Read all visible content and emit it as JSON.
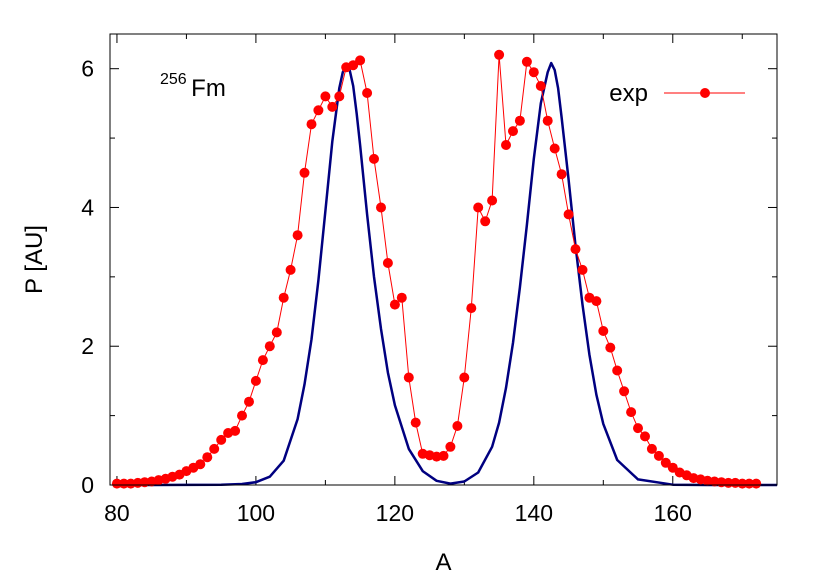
{
  "chart_data": {
    "type": "line",
    "title": "",
    "xlabel": "A",
    "ylabel": "P [AU]",
    "xlim": [
      79,
      175
    ],
    "ylim": [
      0,
      6.5
    ],
    "x_ticks": [
      80,
      100,
      120,
      140,
      160
    ],
    "y_ticks": [
      0,
      2,
      4,
      6
    ],
    "annotation": {
      "superscript": "256",
      "text": "Fm"
    },
    "legend": {
      "position": "top-right"
    },
    "colors": {
      "exp": "#ff0000",
      "theory": "#000080"
    },
    "series": [
      {
        "name": "exp",
        "style": "line-points",
        "x": [
          80,
          81,
          82,
          83,
          84,
          85,
          86,
          87,
          88,
          89,
          90,
          91,
          92,
          93,
          94,
          95,
          96,
          97,
          98,
          99,
          100,
          101,
          102,
          103,
          104,
          105,
          106,
          107,
          108,
          109,
          110,
          111,
          112,
          113,
          114,
          115,
          116,
          117,
          118,
          119,
          120,
          121,
          122,
          123,
          124,
          125,
          126,
          127,
          128,
          129,
          130,
          131,
          132,
          133,
          134,
          135,
          136,
          137,
          138,
          139,
          140,
          141,
          142,
          143,
          144,
          145,
          146,
          147,
          148,
          149,
          150,
          151,
          152,
          153,
          154,
          155,
          156,
          157,
          158,
          159,
          160,
          161,
          162,
          163,
          164,
          165,
          166,
          167,
          168,
          169,
          170,
          171,
          172
        ],
        "y": [
          0.02,
          0.02,
          0.02,
          0.03,
          0.04,
          0.05,
          0.07,
          0.09,
          0.12,
          0.15,
          0.2,
          0.25,
          0.3,
          0.4,
          0.52,
          0.65,
          0.75,
          0.78,
          1.0,
          1.2,
          1.5,
          1.8,
          2.0,
          2.2,
          2.7,
          3.1,
          3.6,
          4.5,
          5.2,
          5.4,
          5.6,
          5.45,
          5.6,
          6.02,
          6.05,
          6.12,
          5.65,
          4.7,
          4.0,
          3.2,
          2.6,
          2.7,
          1.55,
          0.9,
          0.45,
          0.43,
          0.41,
          0.42,
          0.55,
          0.85,
          1.55,
          2.55,
          4.0,
          3.8,
          4.1,
          6.2,
          4.9,
          5.1,
          5.25,
          6.1,
          5.95,
          5.75,
          5.25,
          4.85,
          4.48,
          3.9,
          3.4,
          3.1,
          2.7,
          2.65,
          2.22,
          1.98,
          1.65,
          1.35,
          1.05,
          0.82,
          0.7,
          0.52,
          0.42,
          0.32,
          0.25,
          0.18,
          0.14,
          0.1,
          0.08,
          0.06,
          0.05,
          0.04,
          0.03,
          0.03,
          0.02,
          0.02,
          0.02
        ]
      },
      {
        "style": "line",
        "x": [
          80,
          85,
          90,
          95,
          98,
          100,
          102,
          104,
          106,
          107,
          108,
          109,
          110,
          111,
          112,
          112.5,
          113,
          113.5,
          114,
          114.5,
          115,
          116,
          117,
          118,
          119,
          120,
          122,
          124,
          126,
          128,
          130,
          132,
          134,
          135,
          136,
          137,
          138,
          139,
          140,
          141,
          142,
          142.5,
          143,
          143.5,
          144,
          145,
          146,
          147,
          148,
          149,
          150,
          152,
          155,
          160,
          165,
          170,
          175
        ],
        "y": [
          0,
          0,
          0.001,
          0.005,
          0.015,
          0.04,
          0.12,
          0.35,
          0.95,
          1.45,
          2.1,
          2.95,
          3.95,
          4.95,
          5.72,
          5.95,
          6.05,
          5.98,
          5.75,
          5.35,
          4.9,
          3.9,
          3.0,
          2.25,
          1.62,
          1.15,
          0.52,
          0.2,
          0.06,
          0.02,
          0.05,
          0.18,
          0.55,
          0.9,
          1.4,
          2.05,
          2.85,
          3.75,
          4.7,
          5.5,
          5.95,
          6.08,
          5.98,
          5.72,
          5.3,
          4.4,
          3.45,
          2.6,
          1.88,
          1.3,
          0.88,
          0.36,
          0.08,
          0.005,
          0,
          0,
          0
        ]
      }
    ]
  }
}
